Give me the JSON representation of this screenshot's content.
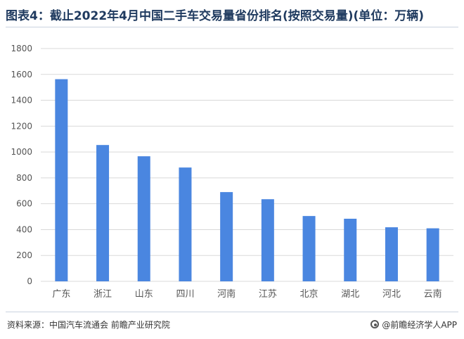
{
  "title": "图表4：截止2022年4月中国二手车交易量省份排名(按照交易量)(单位：万辆)",
  "footer": {
    "source": "资料来源：中国汽车流通会 前瞻产业研究院",
    "brand": "@前瞻经济学人APP"
  },
  "colors": {
    "bar": "#4a86e0",
    "grid": "#d9d9d9",
    "axis_text": "#555555"
  },
  "chart_data": {
    "type": "bar",
    "title": "图表4：截止2022年4月中国二手车交易量省份排名(按照交易量)(单位：万辆)",
    "xlabel": "",
    "ylabel": "",
    "ylim": [
      0,
      1800
    ],
    "yticks": [
      0,
      200,
      400,
      600,
      800,
      1000,
      1200,
      1400,
      1600,
      1800
    ],
    "grid": true,
    "legend": "none",
    "categories": [
      "广东",
      "浙江",
      "山东",
      "四川",
      "河南",
      "江苏",
      "北京",
      "湖北",
      "河北",
      "云南"
    ],
    "values": [
      1563,
      1054,
      967,
      880,
      690,
      635,
      505,
      484,
      418,
      410
    ]
  }
}
